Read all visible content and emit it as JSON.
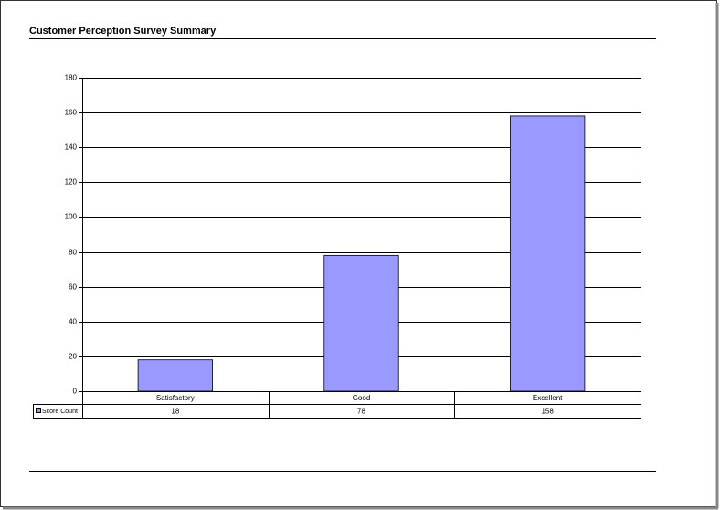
{
  "chart_data": {
    "type": "bar",
    "title": "Customer Perception Survey Summary",
    "categories": [
      "Satisfactory",
      "Good",
      "Excellent"
    ],
    "series": [
      {
        "name": "Score Count",
        "color": "#9999ff",
        "values": [
          18,
          78,
          158
        ]
      }
    ],
    "ylim": [
      0,
      180
    ],
    "yticks": [
      0,
      20,
      40,
      60,
      80,
      100,
      120,
      140,
      160,
      180
    ],
    "grid": true
  }
}
